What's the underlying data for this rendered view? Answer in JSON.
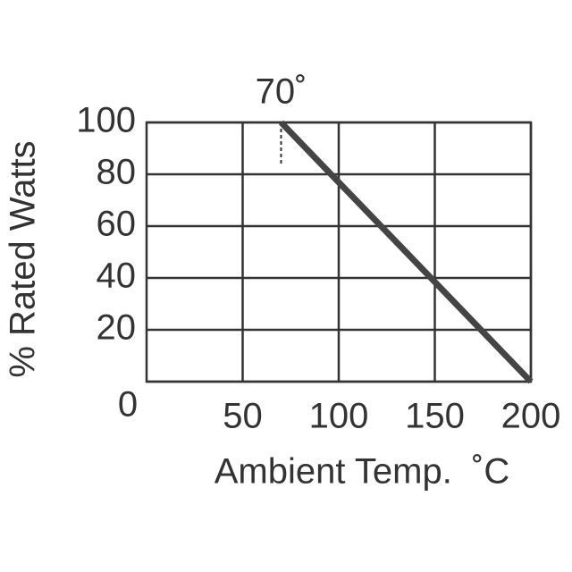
{
  "chart_data": {
    "type": "line",
    "xlabel": "Ambient Temp.  ˚C",
    "ylabel": "% Rated Watts",
    "x": [
      70,
      200
    ],
    "series": [
      {
        "color": "#444444",
        "values": [
          100,
          0
        ]
      }
    ],
    "xlim": [
      0,
      200
    ],
    "xticks": [
      50,
      100,
      150,
      200
    ],
    "ylim": [
      0,
      100
    ],
    "yticks": [
      0,
      20,
      40,
      60,
      80,
      100
    ],
    "grid": true,
    "annotations": [
      {
        "text": "70˚",
        "x": 70
      }
    ]
  }
}
